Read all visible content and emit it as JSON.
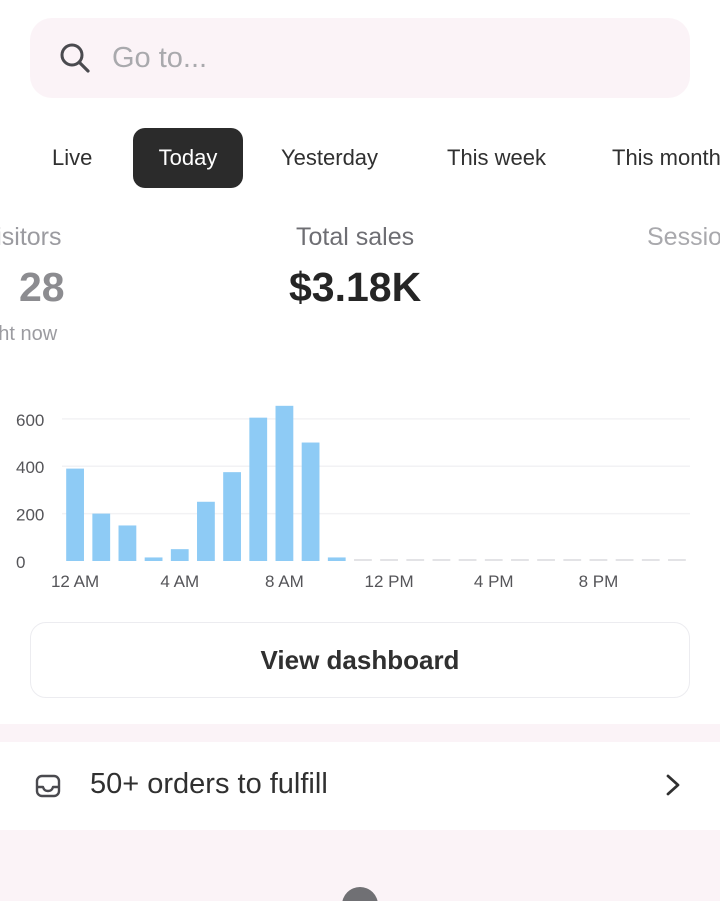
{
  "search": {
    "placeholder": "Go to..."
  },
  "tabs": [
    {
      "label": "Live",
      "active": false
    },
    {
      "label": "Today",
      "active": true
    },
    {
      "label": "Yesterday",
      "active": false
    },
    {
      "label": "This week",
      "active": false
    },
    {
      "label": "This month",
      "active": false
    }
  ],
  "metrics": {
    "visitors": {
      "label": "Visitors",
      "value": "28",
      "sub": "right now"
    },
    "total_sales": {
      "label": "Total sales",
      "value": "$3.18K"
    },
    "sessions": {
      "label": "Sessions"
    }
  },
  "chart_data": {
    "type": "bar",
    "title": "",
    "xlabel": "",
    "ylabel": "",
    "y_ticks": [
      "0",
      "200",
      "400",
      "600"
    ],
    "x_tick_labels": [
      "12 AM",
      "4 AM",
      "8 AM",
      "12 PM",
      "4 PM",
      "8 PM"
    ],
    "ylim": [
      0,
      650
    ],
    "hours": 24,
    "values": [
      390,
      200,
      150,
      15,
      50,
      250,
      375,
      605,
      655,
      500,
      15,
      0,
      0,
      0,
      0,
      0,
      0,
      0,
      0,
      0,
      0,
      0,
      0,
      0
    ],
    "bar_color": "#8ecbf5",
    "grid": true
  },
  "dashboard_button": {
    "label": "View dashboard"
  },
  "orders": {
    "label": "50+ orders to fulfill"
  },
  "colors": {
    "accent_dark": "#2b2b2b",
    "pink_bg": "#fbf3f7",
    "bar": "#8ecbf5"
  }
}
